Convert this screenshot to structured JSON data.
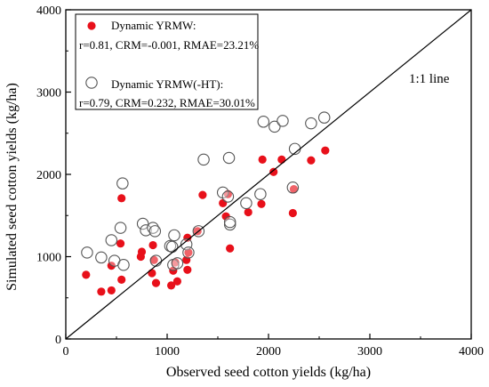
{
  "chart_data": {
    "type": "scatter",
    "title": "",
    "xlabel": "Observed seed cotton yields (kg/ha)",
    "ylabel": "Simulated seed cotton yields (kg/ha)",
    "xlim": [
      0,
      4000
    ],
    "ylim": [
      0,
      4000
    ],
    "xticks": [
      "0",
      "1000",
      "2000",
      "3000",
      "4000"
    ],
    "yticks": [
      "0",
      "1000",
      "2000",
      "3000",
      "4000"
    ],
    "grid": false,
    "legend_placement": "top-left",
    "reference_line": {
      "label": "1:1 line",
      "from": [
        0,
        0
      ],
      "to": [
        4000,
        4000
      ]
    },
    "series": [
      {
        "name": "Dynamic YRMW:",
        "stats": "r=0.81, CRM=-0.001, RMAE=23.21%",
        "marker": "filled-circle",
        "color": "#e8101a",
        "points": [
          [
            200,
            780
          ],
          [
            350,
            575
          ],
          [
            450,
            590
          ],
          [
            450,
            890
          ],
          [
            540,
            1160
          ],
          [
            550,
            720
          ],
          [
            550,
            1710
          ],
          [
            740,
            1000
          ],
          [
            750,
            1060
          ],
          [
            850,
            800
          ],
          [
            860,
            1140
          ],
          [
            870,
            960
          ],
          [
            890,
            680
          ],
          [
            1040,
            650
          ],
          [
            1060,
            830
          ],
          [
            1080,
            930
          ],
          [
            1100,
            700
          ],
          [
            1190,
            960
          ],
          [
            1200,
            840
          ],
          [
            1200,
            1230
          ],
          [
            1210,
            1050
          ],
          [
            1300,
            1310
          ],
          [
            1350,
            1750
          ],
          [
            1550,
            1650
          ],
          [
            1580,
            1490
          ],
          [
            1600,
            1760
          ],
          [
            1620,
            1100
          ],
          [
            1800,
            1540
          ],
          [
            1930,
            1640
          ],
          [
            1940,
            2180
          ],
          [
            2050,
            2030
          ],
          [
            2130,
            2180
          ],
          [
            2240,
            1530
          ],
          [
            2250,
            1820
          ],
          [
            2420,
            2170
          ],
          [
            2560,
            2290
          ]
        ]
      },
      {
        "name": "Dynamic YRMW(-HT):",
        "stats": "r=0.79, CRM=0.232, RMAE=30.01%",
        "marker": "open-circle",
        "color": "#555555",
        "points": [
          [
            210,
            1050
          ],
          [
            350,
            990
          ],
          [
            450,
            1200
          ],
          [
            480,
            950
          ],
          [
            540,
            1350
          ],
          [
            560,
            1890
          ],
          [
            570,
            900
          ],
          [
            760,
            1400
          ],
          [
            790,
            1320
          ],
          [
            860,
            1350
          ],
          [
            880,
            1310
          ],
          [
            890,
            950
          ],
          [
            1030,
            1130
          ],
          [
            1050,
            1120
          ],
          [
            1060,
            900
          ],
          [
            1070,
            1260
          ],
          [
            1100,
            920
          ],
          [
            1190,
            1150
          ],
          [
            1210,
            1050
          ],
          [
            1310,
            1310
          ],
          [
            1360,
            2180
          ],
          [
            1550,
            1780
          ],
          [
            1600,
            1730
          ],
          [
            1610,
            2200
          ],
          [
            1620,
            1390
          ],
          [
            1620,
            1420
          ],
          [
            1780,
            1650
          ],
          [
            1920,
            1760
          ],
          [
            1950,
            2640
          ],
          [
            2060,
            2580
          ],
          [
            2140,
            2650
          ],
          [
            2240,
            1840
          ],
          [
            2260,
            2310
          ],
          [
            2420,
            2620
          ],
          [
            2550,
            2690
          ]
        ]
      }
    ]
  }
}
